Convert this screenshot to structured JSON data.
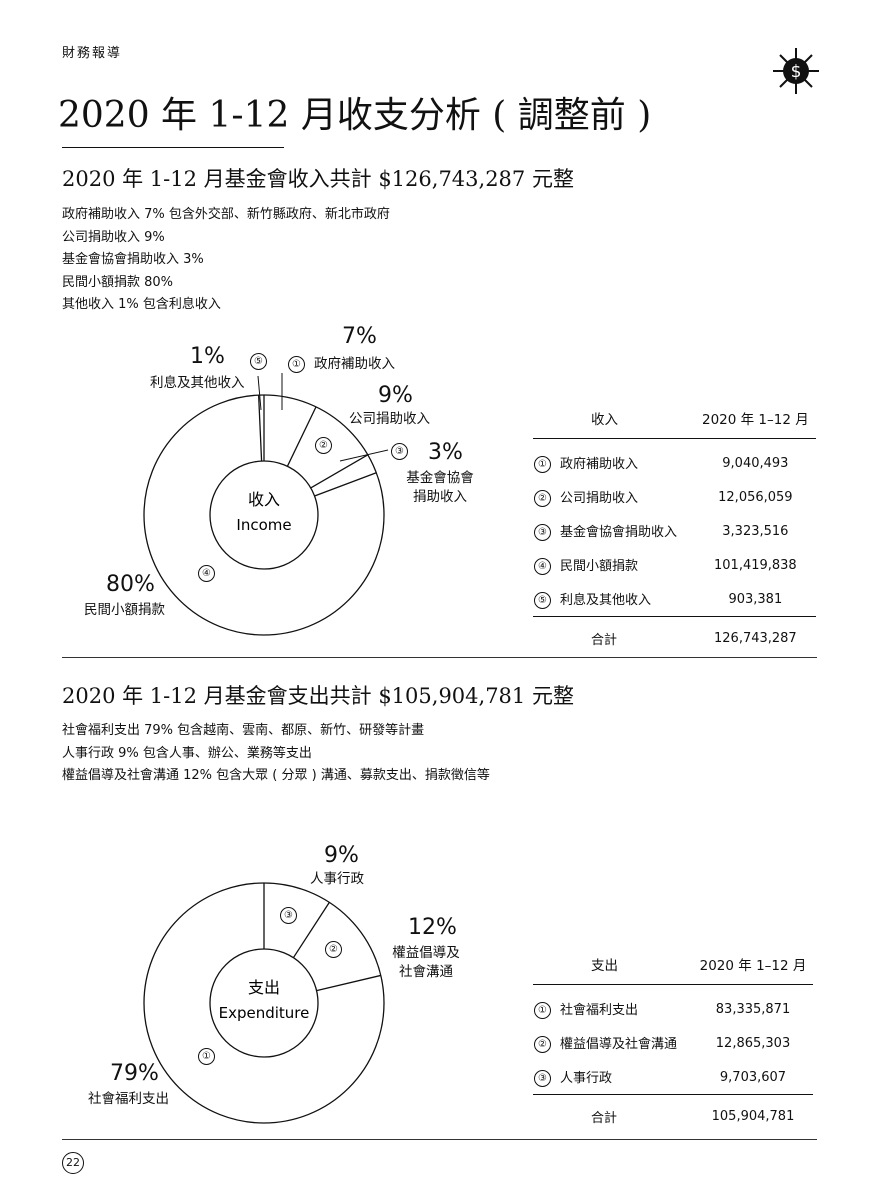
{
  "header": {
    "section": "財務報導",
    "title": "2020 年 1-12 月收支分析 ( 調整前 )"
  },
  "income": {
    "heading": "2020 年 1-12 月基金會收入共計 $126,743,287 元整",
    "notes": [
      "政府補助收入 7% 包含外交部、新竹縣政府、新北市政府",
      "公司捐助收入 9%",
      "基金會協會捐助收入 3%",
      "民間小額捐款 80%",
      "其他收入 1% 包含利息收入"
    ],
    "center": {
      "zh": "收入",
      "en": "Income"
    },
    "slices": [
      {
        "num": "①",
        "pct": "7%",
        "label": "政府補助收入"
      },
      {
        "num": "②",
        "pct": "9%",
        "label": "公司捐助收入"
      },
      {
        "num": "③",
        "pct": "3%",
        "label": "基金會協會捐助收入",
        "label_lines": [
          "基金會協會",
          "捐助收入"
        ]
      },
      {
        "num": "④",
        "pct": "80%",
        "label": "民間小額捐款"
      },
      {
        "num": "⑤",
        "pct": "1%",
        "label": "利息及其他收入"
      }
    ],
    "table": {
      "col1": "收入",
      "col2": "2020 年 1–12 月",
      "total_label": "合計",
      "total": "126,743,287"
    }
  },
  "expense": {
    "heading": "2020 年 1-12 月基金會支出共計 $105,904,781 元整",
    "notes": [
      "社會福利支出 79% 包含越南、雲南、都原、新竹、研發等計畫",
      "人事行政 9% 包含人事、辦公、業務等支出",
      "權益倡導及社會溝通 12% 包含大眾 ( 分眾 ) 溝通、募款支出、捐款徵信等"
    ],
    "center": {
      "zh": "支出",
      "en": "Expenditure"
    },
    "slices": [
      {
        "num": "①",
        "pct": "79%",
        "label": "社會福利支出"
      },
      {
        "num": "②",
        "pct": "12%",
        "label": "權益倡導及社會溝通",
        "label_lines": [
          "權益倡導及",
          "社會溝通"
        ]
      },
      {
        "num": "③",
        "pct": "9%",
        "label": "人事行政"
      }
    ],
    "table": {
      "col1": "支出",
      "col2": "2020 年 1–12 月",
      "total_label": "合計",
      "total": "105,904,781"
    }
  },
  "footer": {
    "page": "22"
  },
  "chart_data": [
    {
      "type": "pie",
      "categories": [
        "政府補助收入",
        "公司捐助收入",
        "基金會協會捐助收入",
        "民間小額捐款",
        "利息及其他收入"
      ],
      "series": [
        {
          "name": "2020 年 1–12 月",
          "values": [
            9040493,
            12056059,
            3323516,
            101419838,
            903381
          ]
        }
      ],
      "percent_labels": [
        "7%",
        "9%",
        "3%",
        "80%",
        "1%"
      ],
      "center_label": "收入 Income"
    },
    {
      "type": "pie",
      "categories": [
        "社會福利支出",
        "權益倡導及社會溝通",
        "人事行政"
      ],
      "series": [
        {
          "name": "2020 年 1–12 月",
          "values": [
            83335871,
            12865303,
            9703607
          ]
        }
      ],
      "percent_labels": [
        "79%",
        "12%",
        "9%"
      ],
      "center_label": "支出 Expenditure"
    }
  ]
}
